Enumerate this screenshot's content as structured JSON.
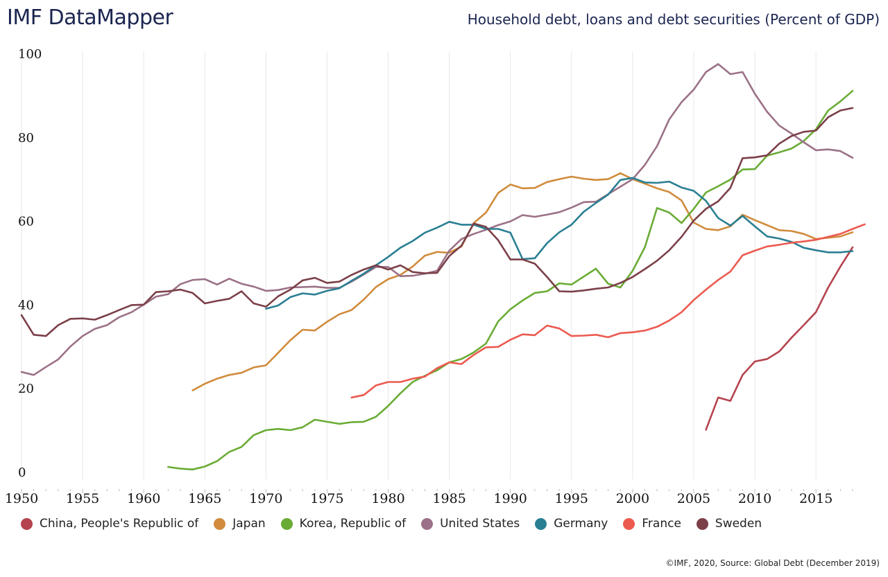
{
  "header": {
    "brand": "IMF DataMapper",
    "subtitle": "Household debt, loans and debt securities (Percent of GDP)"
  },
  "footer": {
    "source": "©IMF, 2020, Source: Global Debt (December 2019)"
  },
  "chart_data": {
    "type": "line",
    "title": "Household debt, loans and debt securities (Percent of GDP)",
    "xlabel": "",
    "ylabel": "",
    "xlim": [
      1950,
      2018
    ],
    "ylim": [
      0,
      100
    ],
    "x_ticks": [
      "1950",
      "1955",
      "1960",
      "1965",
      "1970",
      "1975",
      "1980",
      "1985",
      "1990",
      "1995",
      "2000",
      "2005",
      "2010",
      "2015"
    ],
    "y_ticks": [
      "0",
      "20",
      "40",
      "60",
      "80",
      "100"
    ],
    "grid": "vertical",
    "legend_position": "bottom",
    "series": [
      {
        "name": "China, People's Republic of",
        "color": "#b5434e",
        "start_year": 2006,
        "values": [
          10.2,
          17.9,
          17.1,
          23.3,
          26.5,
          27.1,
          28.9,
          32.2,
          35.2,
          38.3,
          44.2,
          49.2,
          53.8
        ]
      },
      {
        "name": "Japan",
        "color": "#d08b3c",
        "start_year": 1964,
        "values": [
          19.6,
          21.2,
          22.4,
          23.3,
          23.8,
          25.1,
          25.6,
          28.6,
          31.6,
          34.1,
          33.9,
          36.0,
          37.8,
          38.8,
          41.3,
          44.3,
          46.2,
          47.2,
          49.2,
          51.8,
          52.7,
          52.5,
          54.0,
          59.6,
          62.1,
          66.8,
          68.8,
          67.9,
          68.0,
          69.4,
          70.1,
          70.7,
          70.2,
          69.9,
          70.1,
          71.5,
          70.1,
          69.0,
          67.9,
          67.0,
          65.0,
          59.7,
          58.2,
          57.9,
          58.8,
          61.6,
          60.3,
          59.1,
          57.9,
          57.7,
          57.0,
          55.8,
          56.1,
          56.4,
          57.4
        ]
      },
      {
        "name": "Korea, Republic of",
        "color": "#6aab35",
        "start_year": 1962,
        "values": [
          1.3,
          0.9,
          0.7,
          1.4,
          2.7,
          4.9,
          6.1,
          8.9,
          10.1,
          10.4,
          10.1,
          10.8,
          12.6,
          12.1,
          11.6,
          12.0,
          12.1,
          13.3,
          15.9,
          18.9,
          21.6,
          23.1,
          24.4,
          26.3,
          27.1,
          28.7,
          30.8,
          36.1,
          39.0,
          41.1,
          42.9,
          43.3,
          45.2,
          44.9,
          46.8,
          48.7,
          45.1,
          44.2,
          48.2,
          53.8,
          63.2,
          62.1,
          59.6,
          63.0,
          66.9,
          68.4,
          70.0,
          72.4,
          72.5,
          75.7,
          76.5,
          77.4,
          79.2,
          82.0,
          86.5,
          88.7,
          91.2
        ]
      },
      {
        "name": "United States",
        "color": "#9b7187",
        "start_year": 1950,
        "values": [
          24.0,
          23.3,
          25.2,
          27.0,
          30.1,
          32.6,
          34.3,
          35.2,
          37.1,
          38.3,
          40.1,
          42.0,
          42.6,
          45.0,
          46.0,
          46.2,
          44.9,
          46.3,
          45.1,
          44.4,
          43.4,
          43.6,
          44.2,
          44.3,
          44.4,
          44.1,
          44.1,
          45.6,
          47.3,
          49.1,
          49.1,
          46.9,
          47.0,
          47.5,
          48.2,
          53.0,
          55.8,
          57.0,
          58.0,
          59.1,
          60.0,
          61.5,
          61.1,
          61.6,
          62.2,
          63.3,
          64.6,
          64.7,
          66.5,
          68.3,
          70.1,
          73.5,
          78.0,
          84.4,
          88.5,
          91.5,
          95.7,
          97.6,
          95.2,
          95.7,
          90.5,
          86.2,
          82.9,
          81.0,
          78.9,
          77.0,
          77.2,
          76.8,
          75.2
        ]
      },
      {
        "name": "Germany",
        "color": "#2a7f93",
        "start_year": 1970,
        "values": [
          39.1,
          39.9,
          41.9,
          42.8,
          42.5,
          43.4,
          44.0,
          45.8,
          47.5,
          49.5,
          51.5,
          53.7,
          55.3,
          57.3,
          58.5,
          59.9,
          59.2,
          59.2,
          58.2,
          58.2,
          57.3,
          51.0,
          51.2,
          54.8,
          57.4,
          59.2,
          62.3,
          64.4,
          66.4,
          69.9,
          70.4,
          69.3,
          69.2,
          69.5,
          68.1,
          67.3,
          64.9,
          60.8,
          59.0,
          61.3,
          58.8,
          56.4,
          55.9,
          55.1,
          53.7,
          53.1,
          52.6,
          52.6,
          52.9
        ]
      },
      {
        "name": "France",
        "color": "#ec5a4f",
        "start_year": 1977,
        "values": [
          17.9,
          18.5,
          20.8,
          21.6,
          21.6,
          22.4,
          22.9,
          24.9,
          26.3,
          25.9,
          28.1,
          29.9,
          30.0,
          31.7,
          33.0,
          32.8,
          35.1,
          34.4,
          32.6,
          32.7,
          32.9,
          32.3,
          33.3,
          33.5,
          33.9,
          34.8,
          36.3,
          38.3,
          41.2,
          43.7,
          46.0,
          48.0,
          51.9,
          53.0,
          54.0,
          54.4,
          54.9,
          55.2,
          55.6,
          56.3,
          57.0,
          58.2,
          59.3
        ]
      },
      {
        "name": "Sweden",
        "color": "#7b3f48",
        "start_year": 1950,
        "values": [
          37.6,
          32.9,
          32.6,
          35.2,
          36.7,
          36.8,
          36.5,
          37.6,
          38.8,
          40.0,
          40.1,
          43.1,
          43.3,
          43.7,
          42.9,
          40.4,
          41.0,
          41.5,
          43.3,
          40.4,
          39.6,
          42.1,
          43.7,
          45.9,
          46.5,
          45.3,
          45.6,
          47.2,
          48.5,
          49.5,
          48.5,
          49.5,
          47.9,
          47.6,
          47.7,
          51.7,
          54.2,
          59.5,
          58.7,
          55.5,
          50.9,
          50.9,
          49.9,
          46.7,
          43.3,
          43.2,
          43.5,
          43.9,
          44.2,
          45.3,
          46.7,
          48.6,
          50.6,
          53.1,
          56.3,
          60.2,
          63.0,
          64.8,
          68.0,
          75.1,
          75.3,
          75.8,
          78.6,
          80.4,
          81.4,
          81.7,
          84.9,
          86.5,
          87.1
        ]
      }
    ]
  }
}
